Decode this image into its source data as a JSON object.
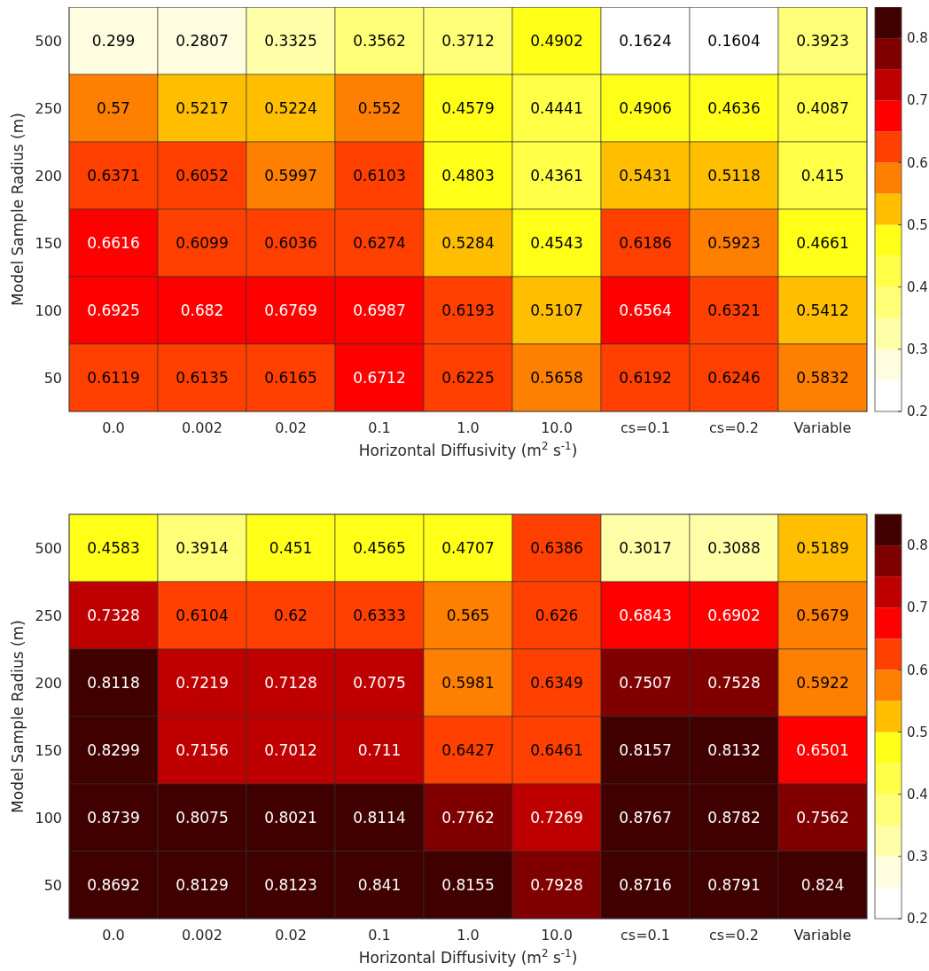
{
  "chart_data": [
    {
      "type": "heatmap",
      "xlabel": "Horizontal Diffusivity (m$^{2}$ s$^{-1}$)",
      "ylabel": "Model Sample Radius (m)",
      "categories": [
        "0.0",
        "0.002",
        "0.02",
        "0.1",
        "1.0",
        "10.0",
        "cs=0.1",
        "cs=0.2",
        "Variable"
      ],
      "y_categories": [
        "500",
        "250",
        "200",
        "150",
        "100",
        "50"
      ],
      "cells": [
        [
          0.299,
          0.2807,
          0.3325,
          0.3562,
          0.3712,
          0.4902,
          0.1624,
          0.1604,
          0.3923
        ],
        [
          0.57,
          0.5217,
          0.5224,
          0.552,
          0.4579,
          0.4441,
          0.4906,
          0.4636,
          0.4087
        ],
        [
          0.6371,
          0.6052,
          0.5997,
          0.6103,
          0.4803,
          0.4361,
          0.5431,
          0.5118,
          0.415
        ],
        [
          0.6616,
          0.6099,
          0.6036,
          0.6274,
          0.5284,
          0.4543,
          0.6186,
          0.5923,
          0.4661
        ],
        [
          0.6925,
          0.682,
          0.6769,
          0.6987,
          0.6193,
          0.5107,
          0.6564,
          0.6321,
          0.5412
        ],
        [
          0.6119,
          0.6135,
          0.6165,
          0.6712,
          0.6225,
          0.5658,
          0.6192,
          0.6246,
          0.5832
        ]
      ],
      "data_labels": true,
      "clim": [
        0.2,
        0.85
      ],
      "cticks": [
        0.2,
        0.3,
        0.4,
        0.5,
        0.6,
        0.7,
        0.8
      ]
    },
    {
      "type": "heatmap",
      "xlabel": "Horizontal Diffusivity (m$^{2}$ s$^{-1}$)",
      "ylabel": "Model Sample Radius (m)",
      "categories": [
        "0.0",
        "0.002",
        "0.02",
        "0.1",
        "1.0",
        "10.0",
        "cs=0.1",
        "cs=0.2",
        "Variable"
      ],
      "y_categories": [
        "500",
        "250",
        "200",
        "150",
        "100",
        "50"
      ],
      "cells": [
        [
          0.4583,
          0.3914,
          0.451,
          0.4565,
          0.4707,
          0.6386,
          0.3017,
          0.3088,
          0.5189
        ],
        [
          0.7328,
          0.6104,
          0.62,
          0.6333,
          0.565,
          0.626,
          0.6843,
          0.6902,
          0.5679
        ],
        [
          0.8118,
          0.7219,
          0.7128,
          0.7075,
          0.5981,
          0.6349,
          0.7507,
          0.7528,
          0.5922
        ],
        [
          0.8299,
          0.7156,
          0.7012,
          0.711,
          0.6427,
          0.6461,
          0.8157,
          0.8132,
          0.6501
        ],
        [
          0.8739,
          0.8075,
          0.8021,
          0.8114,
          0.7762,
          0.7269,
          0.8767,
          0.8782,
          0.7562
        ],
        [
          0.8692,
          0.8129,
          0.8123,
          0.841,
          0.8155,
          0.7928,
          0.8716,
          0.8791,
          0.824
        ]
      ],
      "data_labels": true,
      "clim": [
        0.2,
        0.85
      ],
      "cticks": [
        0.2,
        0.3,
        0.4,
        0.5,
        0.6,
        0.7,
        0.8
      ]
    }
  ]
}
